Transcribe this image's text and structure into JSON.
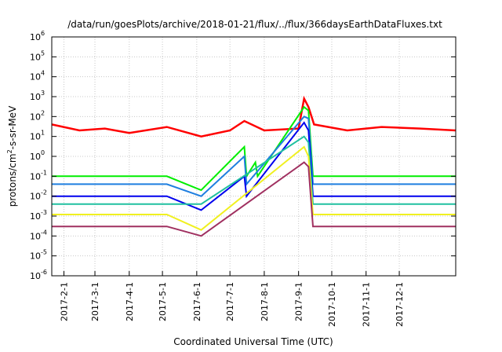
{
  "chart_data": {
    "type": "line",
    "title": "/data/run/goesPlots/archive/2018-01-21/flux/../flux/366daysEarthDataFluxes.txt",
    "xlabel": "Coordinated Universal Time (UTC)",
    "ylabel": {
      "pre": "protons/cm",
      "sup": "2",
      "post": "-s-sr-MeV"
    },
    "yscale": "log",
    "ylim": [
      1e-06,
      1000000.0
    ],
    "xlim": [
      "2017-01-21",
      "2018-01-21"
    ],
    "grid": true,
    "legend": "none",
    "x_ticks": [
      "2017-2-1",
      "2017-3-1",
      "2017-4-1",
      "2017-5-1",
      "2017-6-1",
      "2017-7-1",
      "2017-8-1",
      "2017-9-1",
      "2017-10-1",
      "2017-11-1",
      "2017-12-1"
    ],
    "y_ticks": [
      {
        "base": "10",
        "exp": "-6"
      },
      {
        "base": "10",
        "exp": "-5"
      },
      {
        "base": "10",
        "exp": "-4"
      },
      {
        "base": "10",
        "exp": "-3"
      },
      {
        "base": "10",
        "exp": "-2"
      },
      {
        "base": "10",
        "exp": "-1"
      },
      {
        "base": "10",
        "exp": "0"
      },
      {
        "base": "10",
        "exp": "1"
      },
      {
        "base": "10",
        "exp": "2"
      },
      {
        "base": "10",
        "exp": "3"
      },
      {
        "base": "10",
        "exp": "4"
      },
      {
        "base": "10",
        "exp": "5"
      },
      {
        "base": "10",
        "exp": "6"
      }
    ],
    "data_gap": [
      "2017-05-05",
      "2017-06-05"
    ],
    "series": [
      {
        "color": "#ff0000",
        "baseline": 30,
        "points": [
          [
            "2017-01-21",
            40
          ],
          [
            "2017-02-15",
            20
          ],
          [
            "2017-03-10",
            25
          ],
          [
            "2017-04-01",
            15
          ],
          [
            "2017-05-05",
            30
          ],
          [
            "2017-06-05",
            10
          ],
          [
            "2017-07-01",
            20
          ],
          [
            "2017-07-14",
            60
          ],
          [
            "2017-08-01",
            20
          ],
          [
            "2017-09-01",
            25
          ],
          [
            "2017-09-06",
            800
          ],
          [
            "2017-09-10",
            300
          ],
          [
            "2017-09-15",
            40
          ],
          [
            "2017-10-15",
            20
          ],
          [
            "2017-11-15",
            30
          ],
          [
            "2017-12-20",
            25
          ],
          [
            "2018-01-21",
            20
          ]
        ]
      },
      {
        "color": "#00ee00",
        "baseline": 0.1,
        "points": [
          [
            "2017-01-21",
            0.1
          ],
          [
            "2017-05-05",
            0.1
          ],
          [
            "2017-06-05",
            0.02
          ],
          [
            "2017-07-14",
            3
          ],
          [
            "2017-07-16",
            0.1
          ],
          [
            "2017-07-24",
            0.5
          ],
          [
            "2017-07-26",
            0.1
          ],
          [
            "2017-09-06",
            300
          ],
          [
            "2017-09-10",
            200
          ],
          [
            "2017-09-14",
            0.1
          ],
          [
            "2018-01-21",
            0.1
          ]
        ]
      },
      {
        "color": "#1f7fe0",
        "baseline": 0.04,
        "points": [
          [
            "2017-01-21",
            0.04
          ],
          [
            "2017-05-05",
            0.04
          ],
          [
            "2017-06-05",
            0.01
          ],
          [
            "2017-07-14",
            1
          ],
          [
            "2017-07-16",
            0.04
          ],
          [
            "2017-09-06",
            100
          ],
          [
            "2017-09-10",
            80
          ],
          [
            "2017-09-14",
            0.04
          ],
          [
            "2018-01-21",
            0.04
          ]
        ]
      },
      {
        "color": "#0000ee",
        "baseline": 0.01,
        "points": [
          [
            "2017-01-21",
            0.01
          ],
          [
            "2017-05-05",
            0.01
          ],
          [
            "2017-06-05",
            0.002
          ],
          [
            "2017-07-14",
            0.1
          ],
          [
            "2017-07-16",
            0.01
          ],
          [
            "2017-09-06",
            50
          ],
          [
            "2017-09-10",
            20
          ],
          [
            "2017-09-14",
            0.01
          ],
          [
            "2018-01-21",
            0.01
          ]
        ]
      },
      {
        "color": "#20c0a0",
        "baseline": 0.004,
        "points": [
          [
            "2017-01-21",
            0.004
          ],
          [
            "2017-05-05",
            0.004
          ],
          [
            "2017-06-05",
            0.004
          ],
          [
            "2017-09-06",
            10
          ],
          [
            "2017-09-10",
            5
          ],
          [
            "2017-09-14",
            0.004
          ],
          [
            "2018-01-21",
            0.004
          ]
        ]
      },
      {
        "color": "#f0f020",
        "baseline": 0.0012,
        "points": [
          [
            "2017-01-21",
            0.0012
          ],
          [
            "2017-05-05",
            0.0012
          ],
          [
            "2017-06-05",
            0.0002
          ],
          [
            "2017-09-06",
            3
          ],
          [
            "2017-09-10",
            1
          ],
          [
            "2017-09-14",
            0.0012
          ],
          [
            "2018-01-21",
            0.0012
          ]
        ]
      },
      {
        "color": "#a03060",
        "baseline": 0.0003,
        "points": [
          [
            "2017-01-21",
            0.0003
          ],
          [
            "2017-05-05",
            0.0003
          ],
          [
            "2017-06-05",
            0.0001
          ],
          [
            "2017-09-06",
            0.5
          ],
          [
            "2017-09-10",
            0.3
          ],
          [
            "2017-09-14",
            0.0003
          ],
          [
            "2018-01-21",
            0.0003
          ]
        ]
      }
    ]
  }
}
